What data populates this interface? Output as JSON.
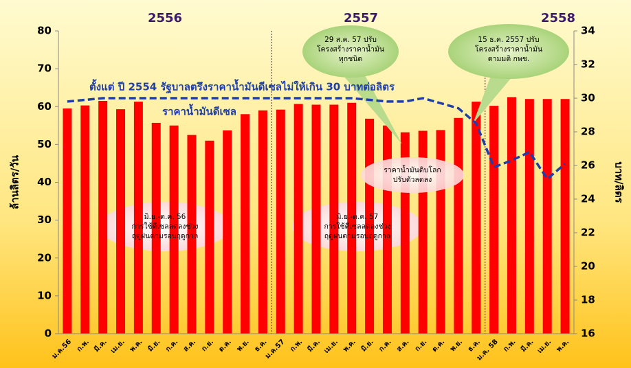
{
  "chart_data": {
    "type": "bar_line",
    "years": [
      "2556",
      "2557",
      "2558"
    ],
    "categories": [
      "ม.ค.56",
      "ก.พ.",
      "มี.ค.",
      "เม.ย.",
      "พ.ค.",
      "มิ.ย.",
      "ก.ค.",
      "ส.ค.",
      "ก.ย.",
      "ต.ค.",
      "พ.ย.",
      "ธ.ค.",
      "ม.ค.57",
      "ก.พ.",
      "มี.ค.",
      "เม.ย.",
      "พ.ค.",
      "มิ.ย.",
      "ก.ค.",
      "ส.ค.",
      "ก.ย.",
      "ต.ค.",
      "พ.ย.",
      "ธ.ค.",
      "ม.ค. 58",
      "ก.พ.",
      "มี.ค.",
      "เม.ย.",
      "พ.ค."
    ],
    "series": [
      {
        "color": "#ff0000",
        "values": [
          59.5,
          60.3,
          61.5,
          59.3,
          61.3,
          55.7,
          55,
          52.5,
          51,
          53.7,
          58,
          59,
          59.2,
          60.7,
          60.5,
          60.5,
          61,
          56.8,
          55,
          53.2,
          53.6,
          53.8,
          57,
          61.3,
          60.2,
          62.5,
          62,
          62,
          62
        ]
      },
      {
        "name": "ราคาน้ำมันดีเซล",
        "color": "#1f3ea8",
        "axis": "y2",
        "values": [
          29.8,
          29.9,
          30,
          30,
          30,
          30,
          30,
          30,
          30,
          30,
          30,
          30,
          30,
          30,
          30,
          30,
          30,
          29.9,
          29.8,
          29.8,
          30,
          29.7,
          29.4,
          28.5,
          25.9,
          26.3,
          26.8,
          25.2,
          26.1
        ]
      }
    ],
    "ylabel": "ล้านลิตร/วัน",
    "y2label": "บาท/ลิตร",
    "ylim": [
      0,
      80
    ],
    "yticks": [
      0,
      10,
      20,
      30,
      40,
      50,
      60,
      70,
      80
    ],
    "y2lim": [
      16,
      34
    ],
    "y2ticks": [
      16,
      18,
      20,
      22,
      24,
      26,
      28,
      30,
      32,
      34
    ],
    "headline": "ตั้งแต่ ปี 2554 รัฐบาลตรึงราคาน้ำมันดีเซลไม่ให้เกิน 30 บาทต่อลิตร",
    "notes": [
      {
        "lines": [
          "มิ.ย.-ต.ค. 56",
          "การใช้ดีเซลลดลงช่วง",
          "ฤดูฝนตามรอบฤดูกาล"
        ]
      },
      {
        "lines": [
          "มิ.ย.-ต.ค. 57",
          "การใช้ดีเซลลดลงช่วง",
          "ฤดูฝนตามรอบฤดูกาล"
        ]
      },
      {
        "lines": [
          "ราคาน้ำมันดิบโลก",
          "ปรับตัวลดลง"
        ]
      },
      {
        "lines": [
          "29 ส.ค. 57 ปรับ",
          "โครงสร้างราคาน้ำมัน",
          "ทุกชนิด"
        ]
      },
      {
        "lines": [
          "15 ธ.ค. 2557 ปรับ",
          "โครงสร้างราคาน้ำมัน",
          "ตามมติ กพช."
        ]
      }
    ]
  }
}
